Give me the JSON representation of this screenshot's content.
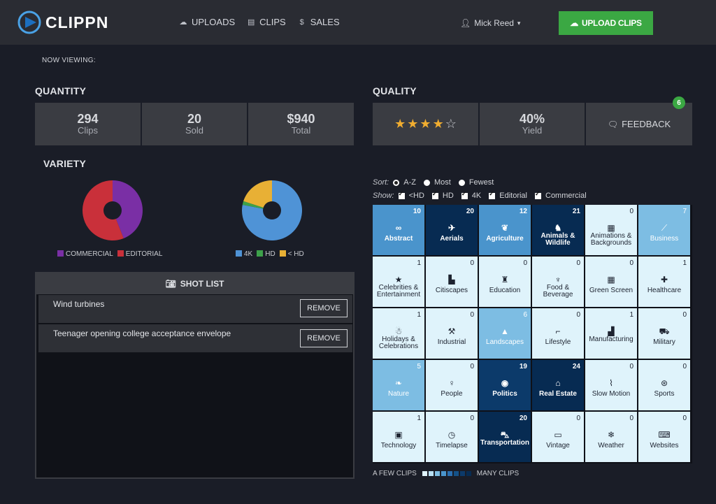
{
  "brand": {
    "name": "CLIPPN"
  },
  "nav": [
    {
      "label": "UPLOADS",
      "icon": "cloud-upload-icon"
    },
    {
      "label": "CLIPS",
      "icon": "film-icon"
    },
    {
      "label": "SALES",
      "icon": "dollar-icon"
    }
  ],
  "user": {
    "name": "Mick Reed"
  },
  "upload_button": "UPLOAD CLIPS",
  "now_viewing": "NOW VIEWING:",
  "quantity": {
    "title": "QUANTITY",
    "clips": {
      "value": "294",
      "label": "Clips"
    },
    "sold": {
      "value": "20",
      "label": "Sold"
    },
    "total": {
      "value": "$940",
      "label": "Total"
    }
  },
  "quality": {
    "title": "QUALITY",
    "stars": 4,
    "stars_max": 5,
    "yield": {
      "value": "40%",
      "label": "Yield"
    },
    "feedback": {
      "label": "FEEDBACK",
      "badge": "6"
    }
  },
  "variety": {
    "title": "VARIETY",
    "type_chart": {
      "type": "pie",
      "slices": [
        {
          "name": "COMMERCIAL",
          "value": 44,
          "color": "#7a2fa5"
        },
        {
          "name": "EDITORIAL",
          "value": 56,
          "color": "#c9303a"
        }
      ]
    },
    "resolution_chart": {
      "type": "pie",
      "slices": [
        {
          "name": "4K",
          "value": 78,
          "color": "#4f93d6"
        },
        {
          "name": "HD",
          "value": 2,
          "color": "#3da14a"
        },
        {
          "name": "< HD",
          "value": 20,
          "color": "#e8b035"
        }
      ]
    }
  },
  "shot_list": {
    "title": "SHOT LIST",
    "remove_label": "REMOVE",
    "items": [
      "Wind turbines",
      "Teenager opening college acceptance envelope"
    ]
  },
  "sort": {
    "label": "Sort:",
    "options": [
      {
        "label": "A-Z",
        "selected": true
      },
      {
        "label": "Most",
        "selected": false
      },
      {
        "label": "Fewest",
        "selected": false
      }
    ]
  },
  "show": {
    "label": "Show:",
    "options": [
      {
        "label": "<HD",
        "checked": true
      },
      {
        "label": "HD",
        "checked": true
      },
      {
        "label": "4K",
        "checked": true
      },
      {
        "label": "Editorial",
        "checked": true
      },
      {
        "label": "Commercial",
        "checked": true
      }
    ]
  },
  "categories": [
    {
      "name": "Abstract",
      "count": 10,
      "icon": "infinity-icon",
      "glyph": "∞"
    },
    {
      "name": "Aerials",
      "count": 20,
      "icon": "plane-icon",
      "glyph": "✈"
    },
    {
      "name": "Agriculture",
      "count": 12,
      "icon": "leaf-icon",
      "glyph": "❦"
    },
    {
      "name": "Animals & Wildlife",
      "count": 21,
      "icon": "animal-icon",
      "glyph": "♞"
    },
    {
      "name": "Animations & Backgrounds",
      "count": 0,
      "icon": "film-icon",
      "glyph": "▦"
    },
    {
      "name": "Business",
      "count": 7,
      "icon": "line-chart-icon",
      "glyph": "⟋"
    },
    {
      "name": "Celebrities & Entertainment",
      "count": 1,
      "icon": "star-icon",
      "glyph": "★"
    },
    {
      "name": "Citiscapes",
      "count": 0,
      "icon": "buildings-icon",
      "glyph": "▙"
    },
    {
      "name": "Education",
      "count": 0,
      "icon": "graduation-cap-icon",
      "glyph": "♜"
    },
    {
      "name": "Food & Beverage",
      "count": 0,
      "icon": "utensils-icon",
      "glyph": "♆"
    },
    {
      "name": "Green Screen",
      "count": 0,
      "icon": "film-icon",
      "glyph": "▦"
    },
    {
      "name": "Healthcare",
      "count": 1,
      "icon": "medkit-icon",
      "glyph": "✚"
    },
    {
      "name": "Holidays & Celebrations",
      "count": 1,
      "icon": "snowman-icon",
      "glyph": "☃"
    },
    {
      "name": "Industrial",
      "count": 0,
      "icon": "forklift-icon",
      "glyph": "⚒"
    },
    {
      "name": "Landscapes",
      "count": 6,
      "icon": "mountain-icon",
      "glyph": "▲"
    },
    {
      "name": "Lifestyle",
      "count": 0,
      "icon": "high-heel-icon",
      "glyph": "⌐"
    },
    {
      "name": "Manufacturing",
      "count": 1,
      "icon": "factory-icon",
      "glyph": "▟"
    },
    {
      "name": "Military",
      "count": 0,
      "icon": "tank-icon",
      "glyph": "⛟"
    },
    {
      "name": "Nature",
      "count": 5,
      "icon": "leaf-icon",
      "glyph": "❧"
    },
    {
      "name": "People",
      "count": 0,
      "icon": "female-icon",
      "glyph": "♀"
    },
    {
      "name": "Politics",
      "count": 19,
      "icon": "globe-icon",
      "glyph": "◉"
    },
    {
      "name": "Real Estate",
      "count": 24,
      "icon": "home-icon",
      "glyph": "⌂"
    },
    {
      "name": "Slow Motion",
      "count": 0,
      "icon": "faucet-icon",
      "glyph": "⌇"
    },
    {
      "name": "Sports",
      "count": 0,
      "icon": "basketball-icon",
      "glyph": "⊛"
    },
    {
      "name": "Technology",
      "count": 1,
      "icon": "chip-icon",
      "glyph": "▣"
    },
    {
      "name": "Timelapse",
      "count": 0,
      "icon": "clock-icon",
      "glyph": "◷"
    },
    {
      "name": "Transportation",
      "count": 20,
      "icon": "car-icon",
      "glyph": "⛍"
    },
    {
      "name": "Vintage",
      "count": 0,
      "icon": "tv-icon",
      "glyph": "▭"
    },
    {
      "name": "Weather",
      "count": 0,
      "icon": "snowflake-icon",
      "glyph": "❄"
    },
    {
      "name": "Websites",
      "count": 0,
      "icon": "laptop-icon",
      "glyph": "⌨"
    }
  ],
  "scale": {
    "low": "A FEW CLIPS",
    "high": "MANY CLIPS"
  },
  "colors": {
    "accent_green": "#3ba843",
    "scale": [
      "#dff3fb",
      "#b8e0f4",
      "#7dbde3",
      "#4a94cc",
      "#2a6fb0",
      "#145289",
      "#0c3a6a",
      "#072b52"
    ]
  }
}
